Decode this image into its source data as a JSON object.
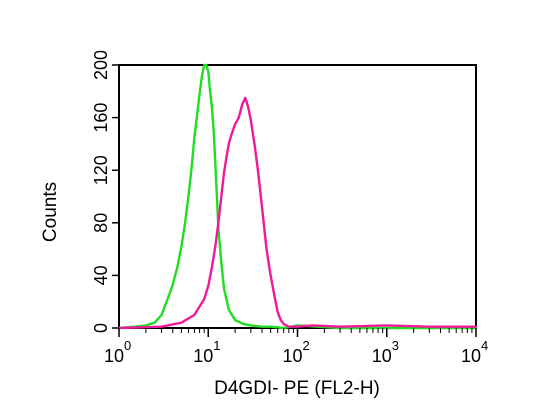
{
  "chart_data": {
    "type": "line",
    "title": "",
    "xlabel": "D4GDI- PE (FL2-H)",
    "ylabel": "Counts",
    "x_scale": "log",
    "xlim": [
      1,
      10000
    ],
    "ylim": [
      0,
      200
    ],
    "x_ticks": [
      {
        "value": 1,
        "base": "10",
        "exp": "0"
      },
      {
        "value": 10,
        "base": "10",
        "exp": "1"
      },
      {
        "value": 100,
        "base": "10",
        "exp": "2"
      },
      {
        "value": 1000,
        "base": "10",
        "exp": "3"
      },
      {
        "value": 10000,
        "base": "10",
        "exp": "4"
      }
    ],
    "y_ticks": [
      "0",
      "40",
      "80",
      "120",
      "160",
      "200"
    ],
    "grid": false,
    "legend": "none",
    "series": [
      {
        "color": "#22dd22",
        "x": [
          1,
          1.5,
          2,
          2.5,
          3,
          3.5,
          4,
          4.5,
          5,
          5.5,
          6,
          6.5,
          7,
          7.5,
          8,
          8.5,
          9,
          9.5,
          10,
          10.5,
          11,
          11.5,
          12,
          12.5,
          13,
          14,
          15,
          17,
          20,
          25,
          30,
          40,
          50,
          70,
          100,
          300,
          1000,
          10000
        ],
        "y": [
          0,
          1,
          2,
          4,
          10,
          22,
          33,
          46,
          62,
          80,
          100,
          122,
          145,
          162,
          178,
          192,
          200,
          200,
          195,
          180,
          168,
          150,
          125,
          100,
          75,
          50,
          30,
          14,
          6,
          3,
          2,
          1,
          1,
          0,
          2,
          0,
          0,
          0
        ]
      },
      {
        "color": "#ee1a99",
        "x": [
          1,
          3,
          5,
          7,
          9,
          10,
          11,
          12,
          13,
          14,
          15,
          16,
          17,
          18,
          20,
          22,
          24,
          26,
          28,
          30,
          33,
          36,
          40,
          45,
          50,
          55,
          60,
          65,
          70,
          80,
          100,
          150,
          300,
          1000,
          3000,
          10000
        ],
        "y": [
          0,
          1,
          4,
          10,
          22,
          32,
          46,
          62,
          80,
          100,
          118,
          130,
          140,
          146,
          155,
          160,
          170,
          175,
          168,
          158,
          140,
          120,
          92,
          60,
          40,
          25,
          12,
          6,
          3,
          1,
          1,
          2,
          1,
          2,
          1,
          1
        ]
      }
    ]
  }
}
